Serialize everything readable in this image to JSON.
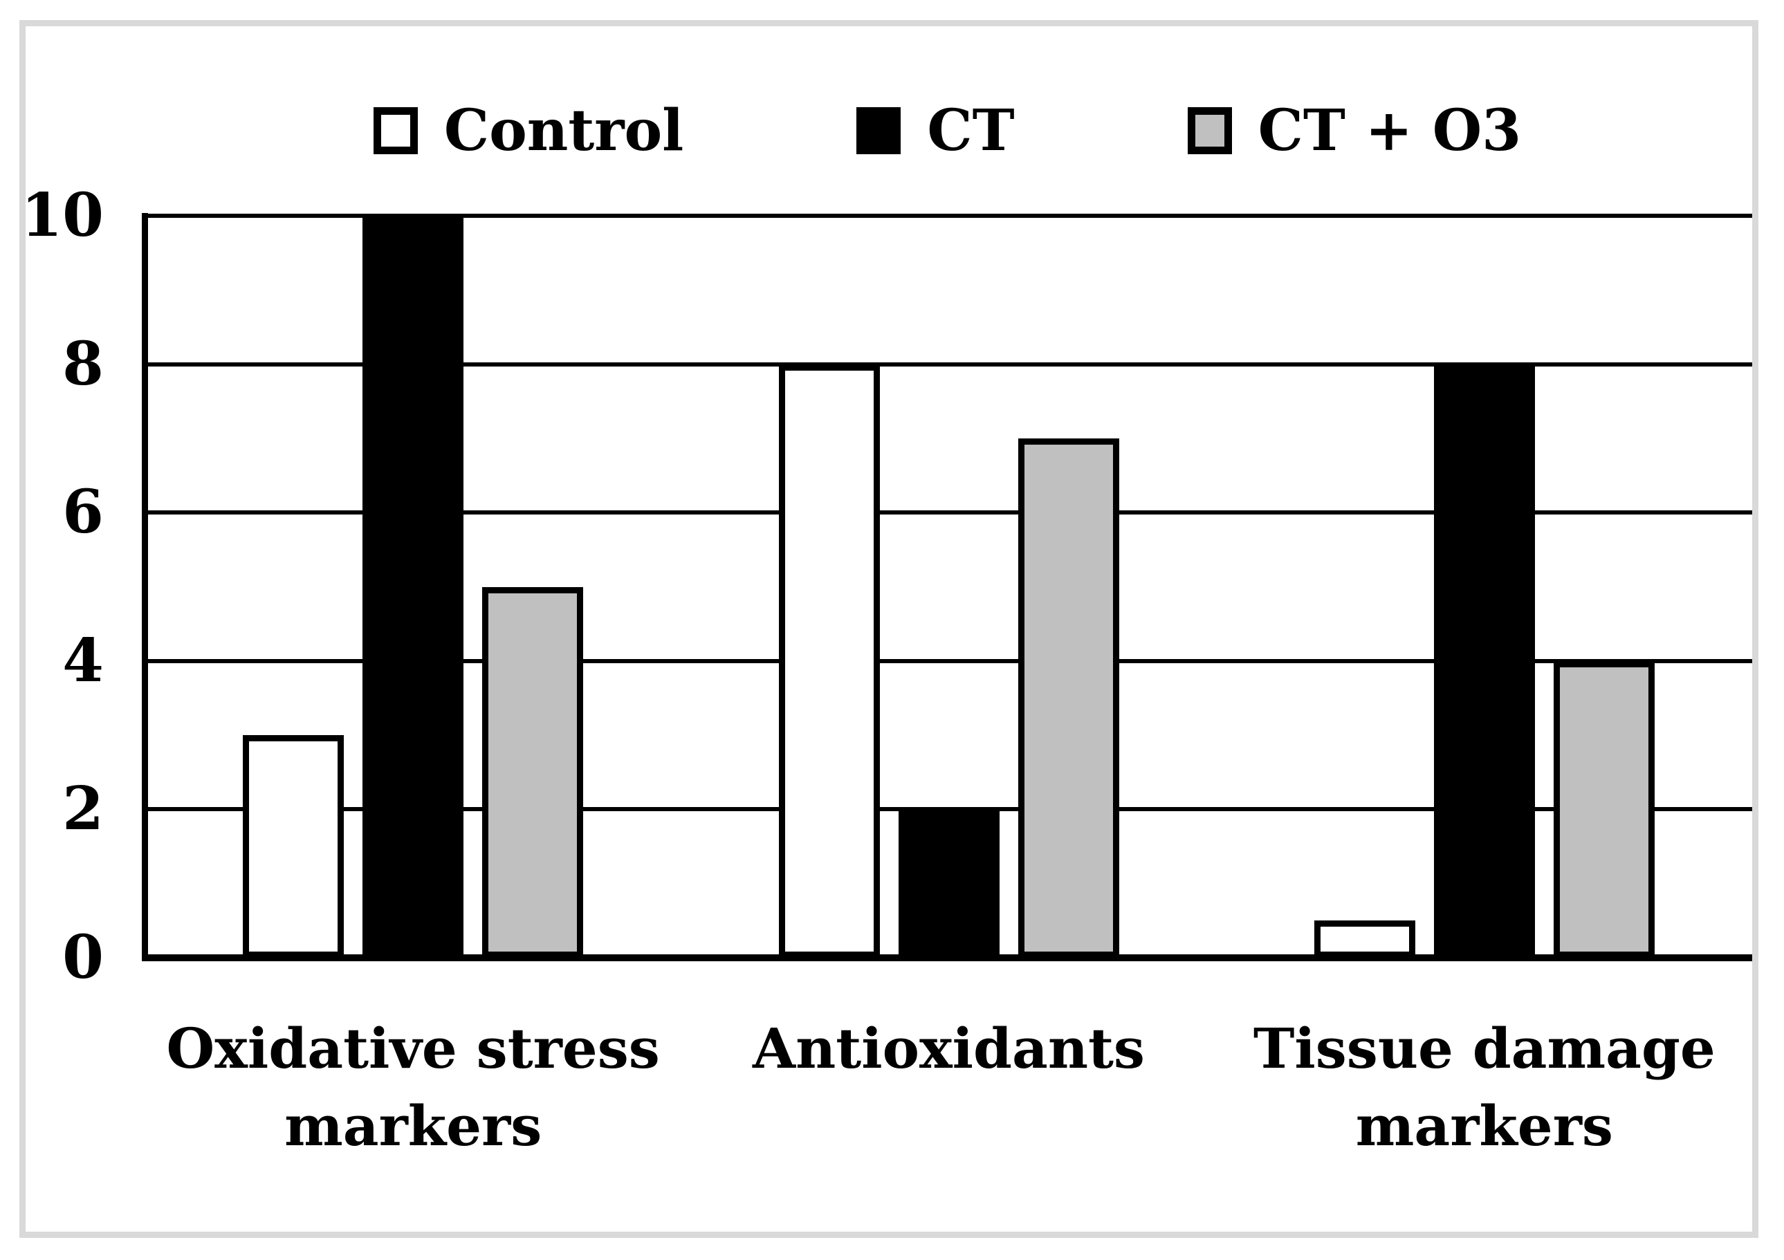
{
  "figure": {
    "frame_color": "#d9d9d9",
    "background_color": "#ffffff",
    "axis_color": "#000000"
  },
  "legend": {
    "items": [
      {
        "label": "Control",
        "swatch_color": "#ffffff"
      },
      {
        "label": "CT",
        "swatch_color": "#000000"
      },
      {
        "label": "CT + O3",
        "swatch_color": "#c0c0c0"
      }
    ]
  },
  "chart_data": {
    "type": "bar",
    "title": "",
    "xlabel": "",
    "ylabel": "",
    "categories": [
      "Oxidative stress markers",
      "Antioxidants",
      "Tissue damage markers"
    ],
    "series": [
      {
        "name": "Control",
        "color": "#ffffff",
        "values": [
          3,
          8,
          0.5
        ]
      },
      {
        "name": "CT",
        "color": "#000000",
        "values": [
          10,
          2,
          8
        ]
      },
      {
        "name": "CT + O3",
        "color": "#c0c0c0",
        "values": [
          5,
          7,
          4
        ]
      }
    ],
    "y_ticks": [
      0,
      2,
      4,
      6,
      8,
      10
    ],
    "ylim": [
      0,
      10
    ],
    "grid": true,
    "legend_position": "top",
    "bar_border_color": "#000000"
  }
}
